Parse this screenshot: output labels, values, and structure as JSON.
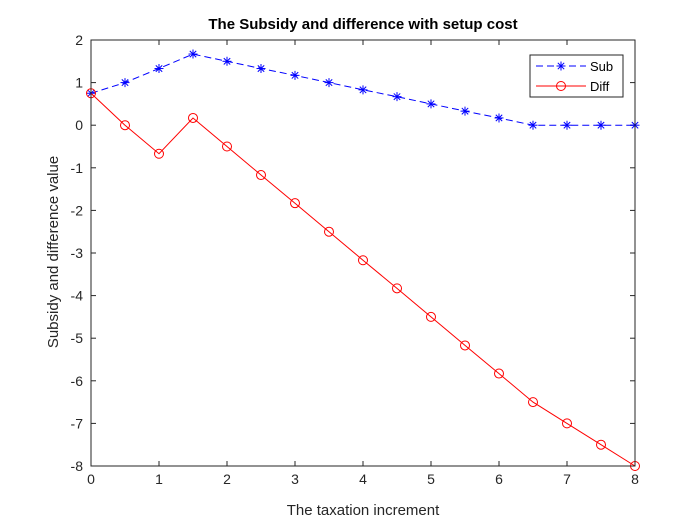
{
  "chart_data": {
    "type": "line",
    "title": "The Subsidy and difference with setup cost",
    "xlabel": "The taxation increment",
    "ylabel": "Subsidy and difference value",
    "xlim": [
      0,
      8
    ],
    "ylim": [
      -8,
      2
    ],
    "xticks": [
      0,
      1,
      2,
      3,
      4,
      5,
      6,
      7,
      8
    ],
    "yticks": [
      -8,
      -7,
      -6,
      -5,
      -4,
      -3,
      -2,
      -1,
      0,
      1,
      2
    ],
    "grid": false,
    "legend_position": "top-right",
    "x": [
      0,
      0.5,
      1,
      1.5,
      2,
      2.5,
      3,
      3.5,
      4,
      4.5,
      5,
      5.5,
      6,
      6.5,
      7,
      7.5,
      8
    ],
    "series": [
      {
        "name": "Sub",
        "color": "#0000ff",
        "line_style": "dashed",
        "marker": "asterisk",
        "values": [
          0.75,
          1.0,
          1.33,
          1.67,
          1.5,
          1.33,
          1.17,
          1.0,
          0.83,
          0.67,
          0.5,
          0.33,
          0.17,
          0.0,
          0.0,
          0.0,
          0.0
        ]
      },
      {
        "name": "Diff",
        "color": "#ff0000",
        "line_style": "solid",
        "marker": "circle",
        "values": [
          0.75,
          0.0,
          -0.67,
          0.17,
          -0.5,
          -1.17,
          -1.83,
          -2.5,
          -3.17,
          -3.83,
          -4.5,
          -5.17,
          -5.83,
          -6.5,
          -7.0,
          -7.5,
          -8.0
        ]
      }
    ]
  }
}
